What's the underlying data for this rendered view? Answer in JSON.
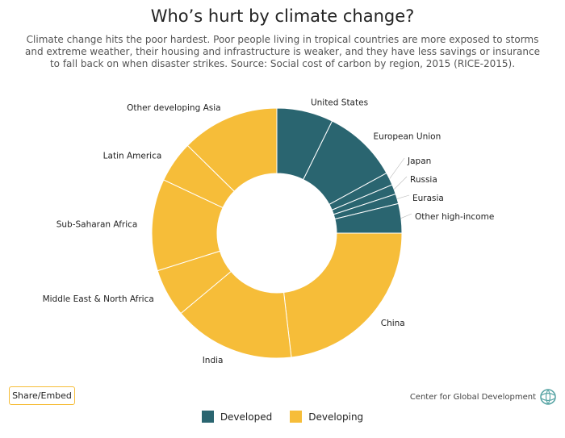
{
  "header": {
    "title": "Who’s hurt by climate change?",
    "subtitle": "Climate change hits the poor hardest. Poor people living in tropical countries are more exposed to storms and extreme weather, their housing and infrastructure is weaker, and they have less savings or insurance to fall back on when disaster strikes. Source: Social cost of carbon by region, 2015 (RICE-2015)."
  },
  "share_label": "Share/Embed",
  "credit": {
    "label": "Center for Global Development",
    "icon": "globe-logo-icon"
  },
  "colors": {
    "developed": "#2a6570",
    "developing": "#f6bd39"
  },
  "legend": [
    {
      "label": "Developed",
      "color": "#2a6570"
    },
    {
      "label": "Developing",
      "color": "#f6bd39"
    }
  ],
  "chart_data": {
    "type": "pie",
    "donut": true,
    "unit": "percent share",
    "slices": [
      {
        "label": "United States",
        "value": 7.5,
        "group": "Developed"
      },
      {
        "label": "European Union",
        "value": 10.0,
        "group": "Developed"
      },
      {
        "label": "Japan",
        "value": 1.7,
        "group": "Developed"
      },
      {
        "label": "Russia",
        "value": 1.3,
        "group": "Developed"
      },
      {
        "label": "Eurasia",
        "value": 1.3,
        "group": "Developed"
      },
      {
        "label": "Other high-income",
        "value": 3.9,
        "group": "Developed"
      },
      {
        "label": "China",
        "value": 23.8,
        "group": "Developing"
      },
      {
        "label": "India",
        "value": 16.2,
        "group": "Developing"
      },
      {
        "label": "Middle East & North Africa",
        "value": 6.4,
        "group": "Developing"
      },
      {
        "label": "Sub-Saharan Africa",
        "value": 12.2,
        "group": "Developing"
      },
      {
        "label": "Latin America",
        "value": 5.5,
        "group": "Developing"
      },
      {
        "label": "Other developing Asia",
        "value": 13.0,
        "group": "Developing"
      }
    ]
  }
}
